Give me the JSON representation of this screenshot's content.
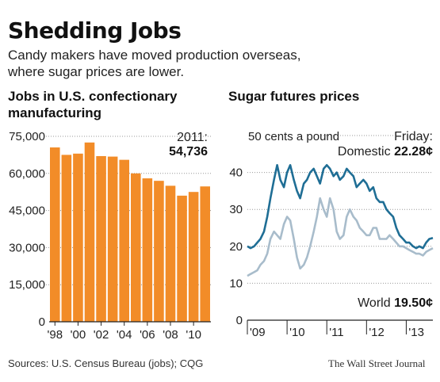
{
  "header": {
    "title": "Shedding Jobs",
    "subtitle": "Candy makers have moved production overseas, where sugar prices are lower."
  },
  "footer": {
    "sources": "Sources: U.S. Census Bureau (jobs); CQG",
    "publication": "The Wall Street Journal"
  },
  "colors": {
    "bars": "#f28c28",
    "domestic": "#1f6e95",
    "world": "#a8bccb",
    "axis": "#222222"
  },
  "chart_data": [
    {
      "type": "bar",
      "title": "Jobs in U.S. confectionary manufacturing",
      "categories": [
        "1998",
        "1999",
        "2000",
        "2001",
        "2002",
        "2003",
        "2004",
        "2005",
        "2006",
        "2007",
        "2008",
        "2009",
        "2010",
        "2011"
      ],
      "values": [
        70500,
        67500,
        68000,
        72500,
        67000,
        66800,
        65500,
        60000,
        58000,
        57000,
        55000,
        51000,
        52500,
        54736
      ],
      "xticks": [
        "'98",
        "'00",
        "'02",
        "'04",
        "'06",
        "'08",
        "'10"
      ],
      "yticks": [
        "75,000",
        "60,000",
        "45,000",
        "30,000",
        "15,000",
        "0"
      ],
      "ylim": [
        0,
        75000
      ],
      "annotation": {
        "label": "2011:",
        "value": "54,736"
      }
    },
    {
      "type": "line",
      "title": "Sugar futures prices",
      "ylabel": "50 cents a pound",
      "xticks": [
        "'09",
        "'10",
        "'11",
        "'12",
        "'13"
      ],
      "yticks": [
        "40",
        "30",
        "20",
        "10",
        "0"
      ],
      "ylim": [
        0,
        50
      ],
      "xlim": [
        2009.0,
        2013.67
      ],
      "annotation": {
        "label": "Friday:"
      },
      "series": [
        {
          "name": "Domestic",
          "value_label": "22.28¢",
          "x": [
            2009.0,
            2009.08,
            2009.17,
            2009.25,
            2009.33,
            2009.42,
            2009.5,
            2009.58,
            2009.67,
            2009.75,
            2009.83,
            2009.92,
            2010.0,
            2010.08,
            2010.17,
            2010.25,
            2010.33,
            2010.42,
            2010.5,
            2010.58,
            2010.67,
            2010.75,
            2010.83,
            2010.92,
            2011.0,
            2011.08,
            2011.17,
            2011.25,
            2011.33,
            2011.42,
            2011.5,
            2011.58,
            2011.67,
            2011.75,
            2011.83,
            2011.92,
            2012.0,
            2012.08,
            2012.17,
            2012.25,
            2012.33,
            2012.42,
            2012.5,
            2012.58,
            2012.67,
            2012.75,
            2012.83,
            2012.92,
            2013.0,
            2013.08,
            2013.17,
            2013.25,
            2013.33,
            2013.42,
            2013.5,
            2013.58,
            2013.67
          ],
          "values": [
            20,
            19.5,
            20,
            21,
            22,
            24,
            28,
            33,
            38,
            42,
            38,
            36,
            40,
            42,
            38,
            35,
            33,
            37,
            38,
            40,
            41,
            39,
            37,
            41,
            42,
            41,
            39,
            40,
            38,
            39,
            41,
            40,
            39,
            36,
            37,
            38,
            37,
            35,
            36,
            33,
            32,
            32,
            30,
            29,
            28,
            25,
            23,
            22,
            21,
            21,
            20,
            19.5,
            20,
            19.5,
            21,
            22,
            22.28
          ]
        },
        {
          "name": "World",
          "value_label": "19.50¢",
          "x": [
            2009.0,
            2009.08,
            2009.17,
            2009.25,
            2009.33,
            2009.42,
            2009.5,
            2009.58,
            2009.67,
            2009.75,
            2009.83,
            2009.92,
            2010.0,
            2010.08,
            2010.17,
            2010.25,
            2010.33,
            2010.42,
            2010.5,
            2010.58,
            2010.67,
            2010.75,
            2010.83,
            2010.92,
            2011.0,
            2011.08,
            2011.17,
            2011.25,
            2011.33,
            2011.42,
            2011.5,
            2011.58,
            2011.67,
            2011.75,
            2011.83,
            2011.92,
            2012.0,
            2012.08,
            2012.17,
            2012.25,
            2012.33,
            2012.42,
            2012.5,
            2012.58,
            2012.67,
            2012.75,
            2012.83,
            2012.92,
            2013.0,
            2013.08,
            2013.17,
            2013.25,
            2013.33,
            2013.42,
            2013.5,
            2013.58,
            2013.67
          ],
          "values": [
            12,
            12.5,
            13,
            13.5,
            15,
            16,
            18,
            22,
            24,
            23,
            22,
            26,
            28,
            27,
            22,
            17,
            14,
            15,
            17,
            20,
            24,
            28,
            33,
            30,
            28,
            33,
            30,
            24,
            22,
            23,
            28,
            30,
            28,
            27,
            25,
            24,
            23,
            23,
            25,
            25,
            22,
            22,
            22,
            23,
            22,
            21,
            20,
            20,
            19.5,
            19,
            18.5,
            18,
            18,
            17.5,
            18.5,
            19,
            19.5
          ]
        }
      ]
    }
  ]
}
